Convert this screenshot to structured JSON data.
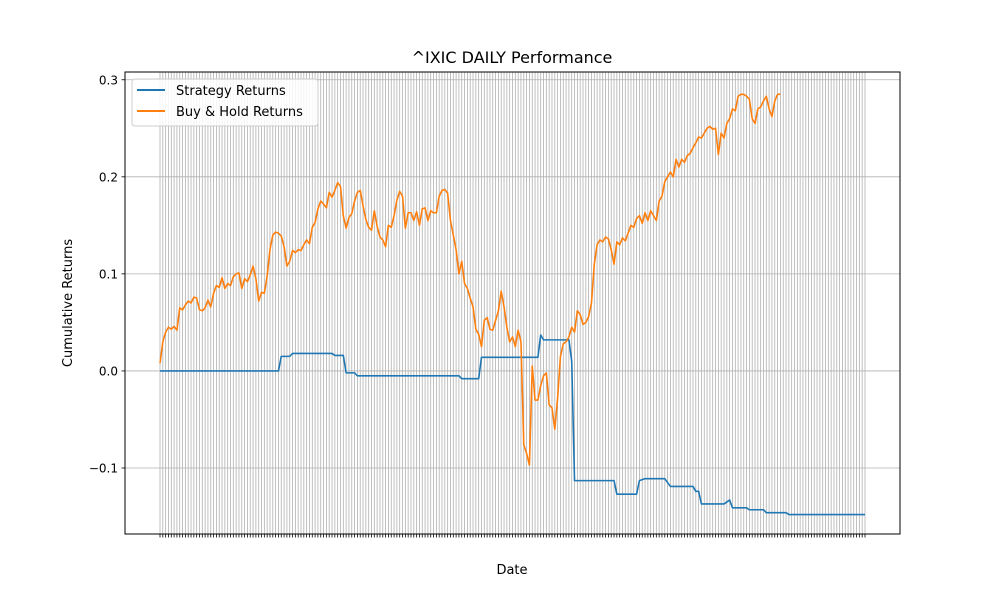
{
  "chart_data": {
    "type": "line",
    "title": "^IXIC DAILY Performance",
    "xlabel": "Date",
    "ylabel": "Cumulative Returns",
    "ylim": [
      -0.168,
      0.308
    ],
    "yticks": [
      -0.1,
      0.0,
      0.1,
      0.2,
      0.3
    ],
    "ytick_labels": [
      "−0.1",
      "0.0",
      "0.1",
      "0.2",
      "0.3"
    ],
    "xtick_labels_note": "overlapping daily date labels (illegible)",
    "x_index_range": [
      0,
      250
    ],
    "grid": true,
    "legend_position": "top-left",
    "series": [
      {
        "name": "Strategy Returns",
        "color": "#1f77b4",
        "points": [
          [
            0,
            0.0
          ],
          [
            42,
            0.0
          ],
          [
            43,
            0.015
          ],
          [
            46,
            0.015
          ],
          [
            47,
            0.018
          ],
          [
            61,
            0.018
          ],
          [
            62,
            0.016
          ],
          [
            65,
            0.016
          ],
          [
            66,
            -0.002
          ],
          [
            69,
            -0.002
          ],
          [
            70,
            -0.005
          ],
          [
            106,
            -0.005
          ],
          [
            107,
            -0.008
          ],
          [
            113,
            -0.008
          ],
          [
            114,
            0.014
          ],
          [
            134,
            0.014
          ],
          [
            135,
            0.037
          ],
          [
            136,
            0.032
          ],
          [
            145,
            0.032
          ],
          [
            146,
            0.01
          ],
          [
            147,
            -0.113
          ],
          [
            161,
            -0.113
          ],
          [
            162,
            -0.127
          ],
          [
            169,
            -0.127
          ],
          [
            170,
            -0.113
          ],
          [
            172,
            -0.111
          ],
          [
            179,
            -0.111
          ],
          [
            181,
            -0.119
          ],
          [
            189,
            -0.119
          ],
          [
            190,
            -0.124
          ],
          [
            191,
            -0.124
          ],
          [
            192,
            -0.137
          ],
          [
            200,
            -0.137
          ],
          [
            202,
            -0.133
          ],
          [
            203,
            -0.141
          ],
          [
            208,
            -0.141
          ],
          [
            209,
            -0.143
          ],
          [
            214,
            -0.143
          ],
          [
            215,
            -0.146
          ],
          [
            222,
            -0.146
          ],
          [
            223,
            -0.148
          ],
          [
            250,
            -0.148
          ]
        ]
      },
      {
        "name": "Buy & Hold Returns",
        "color": "#ff7f0e",
        "points": [
          [
            0,
            0.008
          ],
          [
            1,
            0.03
          ],
          [
            2,
            0.04
          ],
          [
            3,
            0.045
          ],
          [
            4,
            0.043
          ],
          [
            5,
            0.046
          ],
          [
            6,
            0.042
          ],
          [
            7,
            0.065
          ],
          [
            8,
            0.063
          ],
          [
            9,
            0.068
          ],
          [
            10,
            0.072
          ],
          [
            11,
            0.07
          ],
          [
            12,
            0.076
          ],
          [
            13,
            0.075
          ],
          [
            14,
            0.063
          ],
          [
            15,
            0.062
          ],
          [
            16,
            0.065
          ],
          [
            17,
            0.073
          ],
          [
            18,
            0.066
          ],
          [
            19,
            0.08
          ],
          [
            20,
            0.088
          ],
          [
            21,
            0.086
          ],
          [
            22,
            0.096
          ],
          [
            23,
            0.085
          ],
          [
            24,
            0.09
          ],
          [
            25,
            0.088
          ],
          [
            26,
            0.097
          ],
          [
            27,
            0.1
          ],
          [
            28,
            0.101
          ],
          [
            29,
            0.085
          ],
          [
            30,
            0.095
          ],
          [
            31,
            0.092
          ],
          [
            32,
            0.099
          ],
          [
            33,
            0.108
          ],
          [
            34,
            0.095
          ],
          [
            35,
            0.072
          ],
          [
            36,
            0.081
          ],
          [
            37,
            0.08
          ],
          [
            38,
            0.098
          ],
          [
            39,
            0.125
          ],
          [
            40,
            0.14
          ],
          [
            41,
            0.143
          ],
          [
            42,
            0.142
          ],
          [
            43,
            0.139
          ],
          [
            44,
            0.128
          ],
          [
            45,
            0.108
          ],
          [
            46,
            0.113
          ],
          [
            47,
            0.124
          ],
          [
            48,
            0.122
          ],
          [
            49,
            0.125
          ],
          [
            50,
            0.124
          ],
          [
            51,
            0.13
          ],
          [
            52,
            0.135
          ],
          [
            53,
            0.131
          ],
          [
            54,
            0.148
          ],
          [
            55,
            0.153
          ],
          [
            56,
            0.167
          ],
          [
            57,
            0.175
          ],
          [
            58,
            0.172
          ],
          [
            59,
            0.168
          ],
          [
            60,
            0.184
          ],
          [
            61,
            0.179
          ],
          [
            62,
            0.186
          ],
          [
            63,
            0.194
          ],
          [
            64,
            0.19
          ],
          [
            65,
            0.16
          ],
          [
            66,
            0.147
          ],
          [
            67,
            0.158
          ],
          [
            68,
            0.162
          ],
          [
            69,
            0.175
          ],
          [
            70,
            0.184
          ],
          [
            71,
            0.186
          ],
          [
            72,
            0.17
          ],
          [
            73,
            0.156
          ],
          [
            74,
            0.148
          ],
          [
            75,
            0.145
          ],
          [
            76,
            0.165
          ],
          [
            77,
            0.149
          ],
          [
            78,
            0.138
          ],
          [
            79,
            0.135
          ],
          [
            80,
            0.128
          ],
          [
            81,
            0.15
          ],
          [
            82,
            0.148
          ],
          [
            83,
            0.16
          ],
          [
            84,
            0.176
          ],
          [
            85,
            0.185
          ],
          [
            86,
            0.18
          ],
          [
            87,
            0.147
          ],
          [
            88,
            0.163
          ],
          [
            89,
            0.163
          ],
          [
            90,
            0.155
          ],
          [
            91,
            0.164
          ],
          [
            92,
            0.15
          ],
          [
            93,
            0.167
          ],
          [
            94,
            0.168
          ],
          [
            95,
            0.155
          ],
          [
            96,
            0.165
          ],
          [
            97,
            0.163
          ],
          [
            98,
            0.163
          ],
          [
            99,
            0.18
          ],
          [
            100,
            0.186
          ],
          [
            101,
            0.187
          ],
          [
            102,
            0.183
          ],
          [
            103,
            0.155
          ],
          [
            104,
            0.14
          ],
          [
            105,
            0.125
          ],
          [
            106,
            0.1
          ],
          [
            107,
            0.113
          ],
          [
            108,
            0.09
          ],
          [
            109,
            0.085
          ],
          [
            110,
            0.075
          ],
          [
            111,
            0.066
          ],
          [
            112,
            0.043
          ],
          [
            113,
            0.038
          ],
          [
            114,
            0.025
          ],
          [
            115,
            0.052
          ],
          [
            116,
            0.055
          ],
          [
            117,
            0.043
          ],
          [
            118,
            0.042
          ],
          [
            119,
            0.052
          ],
          [
            120,
            0.062
          ],
          [
            121,
            0.082
          ],
          [
            122,
            0.066
          ],
          [
            123,
            0.045
          ],
          [
            124,
            0.03
          ],
          [
            125,
            0.035
          ],
          [
            126,
            0.025
          ],
          [
            127,
            0.042
          ],
          [
            128,
            0.03
          ],
          [
            129,
            -0.076
          ],
          [
            130,
            -0.085
          ],
          [
            131,
            -0.097
          ],
          [
            132,
            0.005
          ],
          [
            133,
            -0.03
          ],
          [
            134,
            -0.03
          ],
          [
            135,
            -0.015
          ],
          [
            136,
            -0.005
          ],
          [
            137,
            -0.002
          ],
          [
            138,
            -0.035
          ],
          [
            139,
            -0.038
          ],
          [
            140,
            -0.06
          ],
          [
            141,
            -0.028
          ],
          [
            142,
            0.015
          ],
          [
            143,
            0.028
          ],
          [
            144,
            0.03
          ],
          [
            145,
            0.035
          ],
          [
            146,
            0.045
          ],
          [
            147,
            0.04
          ],
          [
            148,
            0.062
          ],
          [
            149,
            0.058
          ],
          [
            150,
            0.048
          ],
          [
            151,
            0.05
          ],
          [
            152,
            0.056
          ],
          [
            153,
            0.07
          ],
          [
            154,
            0.11
          ],
          [
            155,
            0.13
          ],
          [
            156,
            0.135
          ],
          [
            157,
            0.133
          ],
          [
            158,
            0.138
          ],
          [
            159,
            0.136
          ],
          [
            160,
            0.125
          ],
          [
            161,
            0.11
          ],
          [
            162,
            0.133
          ],
          [
            163,
            0.13
          ],
          [
            164,
            0.137
          ],
          [
            165,
            0.134
          ],
          [
            166,
            0.142
          ],
          [
            167,
            0.15
          ],
          [
            168,
            0.148
          ],
          [
            169,
            0.157
          ],
          [
            170,
            0.16
          ],
          [
            171,
            0.152
          ],
          [
            172,
            0.163
          ],
          [
            173,
            0.155
          ],
          [
            174,
            0.165
          ],
          [
            175,
            0.16
          ],
          [
            176,
            0.155
          ],
          [
            177,
            0.175
          ],
          [
            178,
            0.18
          ],
          [
            179,
            0.195
          ],
          [
            180,
            0.2
          ],
          [
            181,
            0.205
          ],
          [
            182,
            0.2
          ],
          [
            183,
            0.218
          ],
          [
            184,
            0.21
          ],
          [
            185,
            0.218
          ],
          [
            186,
            0.215
          ],
          [
            187,
            0.222
          ],
          [
            188,
            0.224
          ],
          [
            189,
            0.23
          ],
          [
            190,
            0.235
          ],
          [
            191,
            0.241
          ],
          [
            192,
            0.24
          ],
          [
            193,
            0.245
          ],
          [
            194,
            0.25
          ],
          [
            195,
            0.252
          ],
          [
            196,
            0.249
          ],
          [
            197,
            0.25
          ],
          [
            198,
            0.223
          ],
          [
            199,
            0.245
          ],
          [
            200,
            0.24
          ],
          [
            201,
            0.255
          ],
          [
            202,
            0.26
          ],
          [
            203,
            0.27
          ],
          [
            204,
            0.268
          ],
          [
            205,
            0.283
          ],
          [
            206,
            0.285
          ],
          [
            207,
            0.285
          ],
          [
            208,
            0.283
          ],
          [
            209,
            0.28
          ],
          [
            210,
            0.26
          ],
          [
            211,
            0.255
          ],
          [
            212,
            0.27
          ],
          [
            213,
            0.272
          ],
          [
            214,
            0.278
          ],
          [
            215,
            0.283
          ],
          [
            216,
            0.27
          ],
          [
            217,
            0.262
          ],
          [
            218,
            0.278
          ],
          [
            219,
            0.285
          ],
          [
            220,
            0.285
          ]
        ]
      }
    ]
  }
}
